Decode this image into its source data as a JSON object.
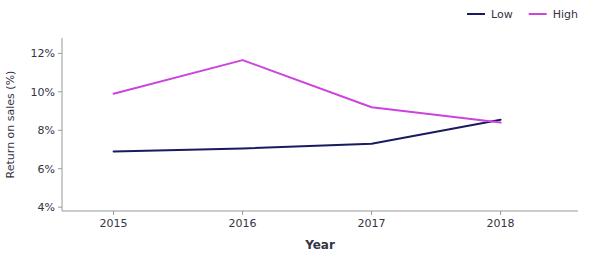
{
  "chart_data": {
    "type": "line",
    "xlabel": "Year",
    "ylabel": "Return on sales (%)",
    "x": [
      2015,
      2016,
      2017,
      2018
    ],
    "xlim": [
      2014.6,
      2018.6
    ],
    "xticks": [
      2015,
      2016,
      2017,
      2018
    ],
    "ylim": [
      3.8,
      12.8
    ],
    "yticks": [
      {
        "value": 4,
        "label": "4%"
      },
      {
        "value": 6,
        "label": "6%"
      },
      {
        "value": 8,
        "label": "8%"
      },
      {
        "value": 10,
        "label": "10%"
      },
      {
        "value": 12,
        "label": "12%"
      }
    ],
    "series": [
      {
        "name": "Low",
        "color": "#1a1a5e",
        "values": [
          6.9,
          7.05,
          7.3,
          8.55
        ]
      },
      {
        "name": "High",
        "color": "#cc44dd",
        "values": [
          9.9,
          11.65,
          9.2,
          8.4
        ]
      }
    ],
    "grid": false,
    "legend": "upper right"
  }
}
